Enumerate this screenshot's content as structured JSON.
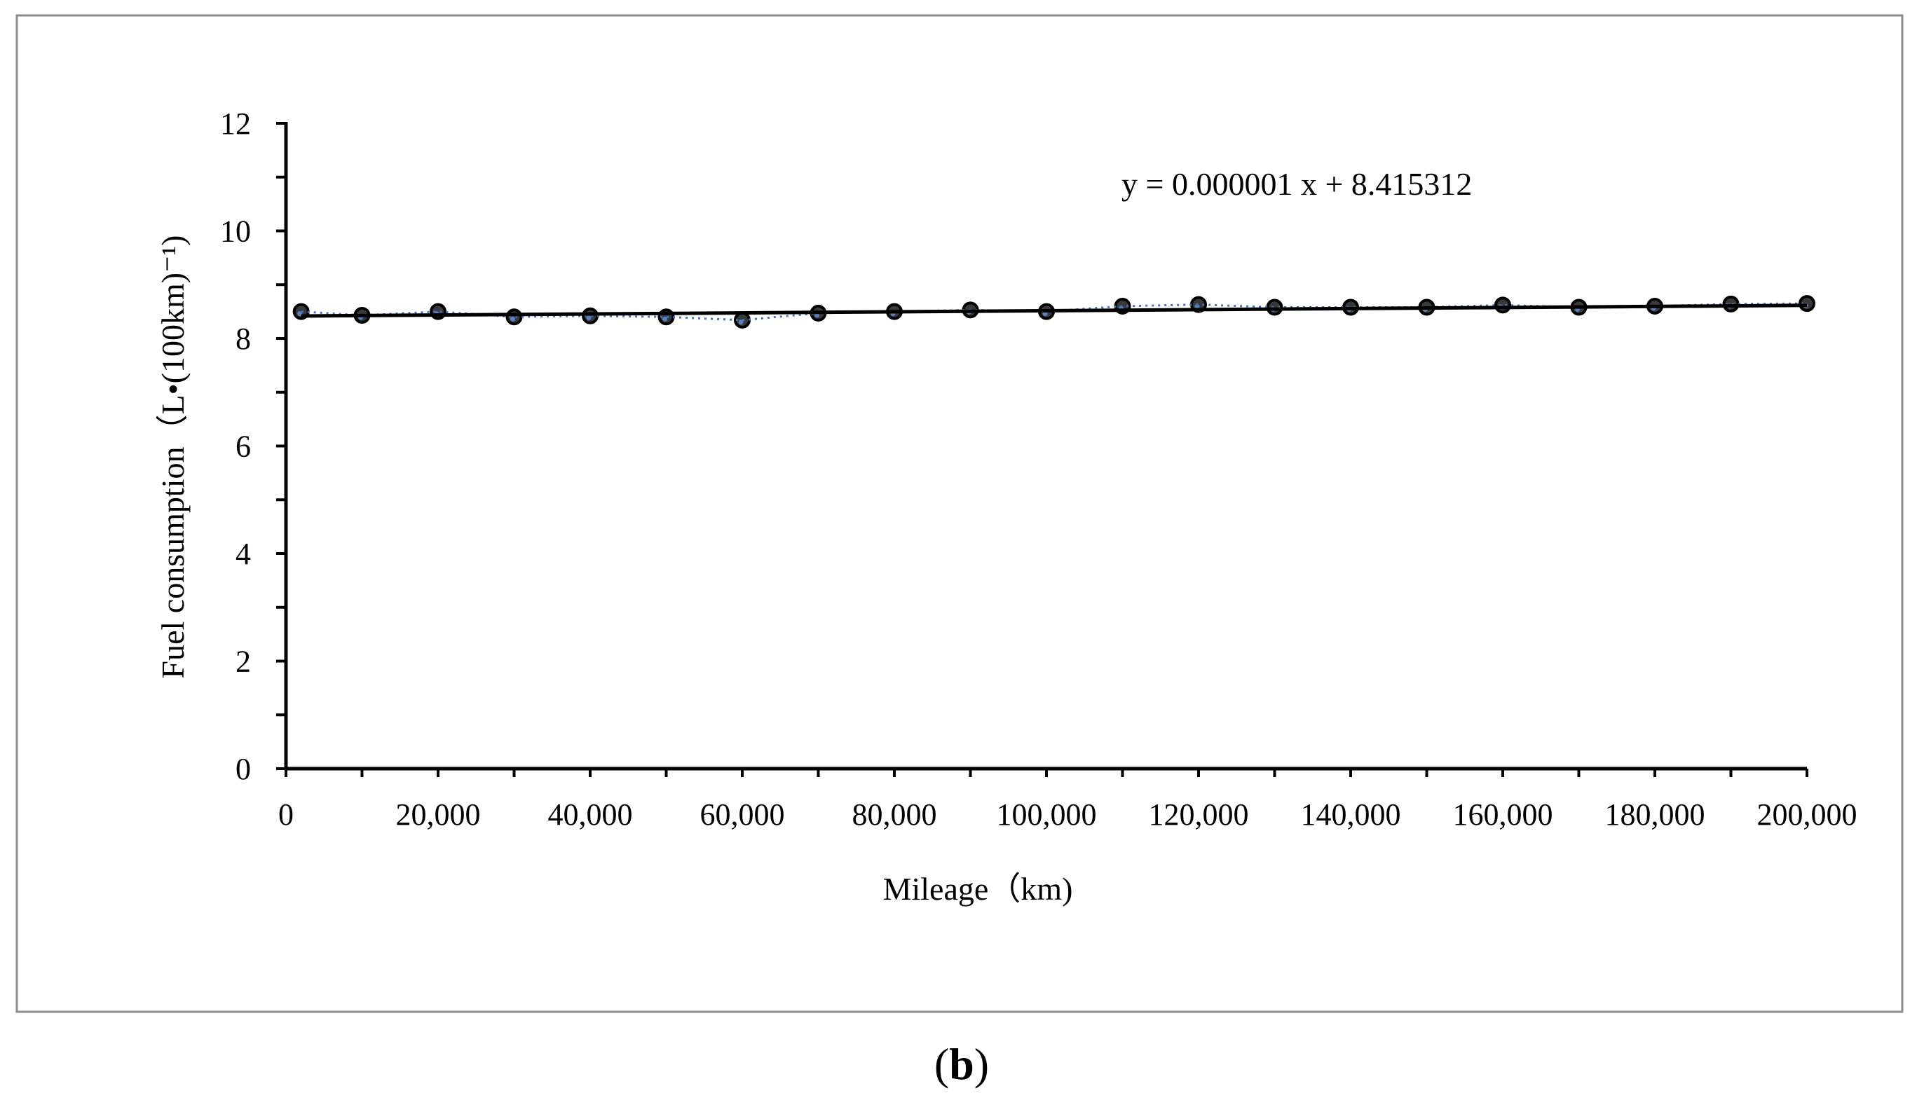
{
  "chart_data": {
    "type": "scatter",
    "title": "",
    "xlabel": "Mileage（km)",
    "ylabel": "Fuel consumption（L•(100km)⁻¹)",
    "xlim": [
      0,
      200000
    ],
    "ylim": [
      0,
      12
    ],
    "x_ticks": [
      0,
      20000,
      40000,
      60000,
      80000,
      100000,
      120000,
      140000,
      160000,
      180000,
      200000
    ],
    "x_tick_labels": [
      "0",
      "20,000",
      "40,000",
      "60,000",
      "80,000",
      "100,000",
      "120,000",
      "140,000",
      "160,000",
      "180,000",
      "200,000"
    ],
    "y_ticks": [
      0,
      2,
      4,
      6,
      8,
      10,
      12
    ],
    "y_tick_labels": [
      "0",
      "2",
      "4",
      "6",
      "8",
      "10",
      "12"
    ],
    "grid": false,
    "series": [
      {
        "name": "Fuel consumption",
        "x": [
          2000,
          10000,
          20000,
          30000,
          40000,
          50000,
          60000,
          70000,
          80000,
          90000,
          100000,
          110000,
          120000,
          130000,
          140000,
          150000,
          160000,
          170000,
          180000,
          190000,
          200000
        ],
        "values": [
          8.5,
          8.43,
          8.5,
          8.4,
          8.42,
          8.4,
          8.34,
          8.47,
          8.5,
          8.53,
          8.5,
          8.6,
          8.63,
          8.58,
          8.58,
          8.58,
          8.62,
          8.58,
          8.6,
          8.64,
          8.65
        ]
      }
    ],
    "trendline": {
      "type": "linear",
      "slope": 1e-06,
      "intercept": 8.415312,
      "equation": "y = 0.000001 x + 8.415312"
    },
    "panel_label": "b",
    "colors": {
      "axis": "#000000",
      "marker_fill": "#3a3a3a",
      "marker_edge": "#000000",
      "marker_highlight": "#5b7fc4",
      "trend_line": "#000000",
      "dotted_line": "#4472c4",
      "frame": "#8c8c8c"
    }
  }
}
